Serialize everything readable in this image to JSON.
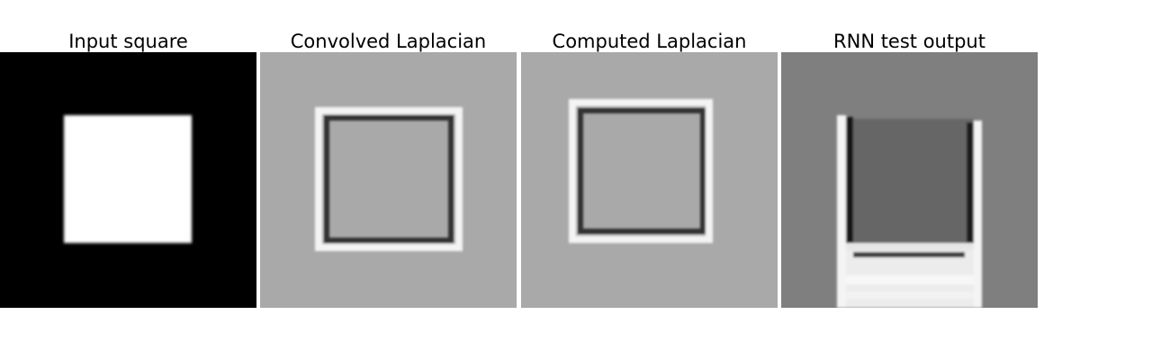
{
  "figure": {
    "panels": [
      {
        "title": "Input square",
        "image": "input-square-image"
      },
      {
        "title": "Convolved Laplacian",
        "image": "convolved-laplacian-image"
      },
      {
        "title": "Computed Laplacian",
        "image": "computed-laplacian-image"
      },
      {
        "title": "RNN test output",
        "image": "rnn-test-output-image"
      }
    ]
  }
}
